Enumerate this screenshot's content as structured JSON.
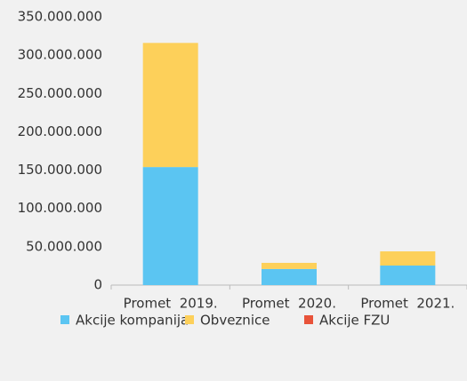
{
  "chart_data": {
    "type": "bar",
    "stacked": true,
    "categories": [
      "Promet  2019.",
      "Promet  2020.",
      "Promet  2021."
    ],
    "series": [
      {
        "name": "Akcije kompanija",
        "color": "#5bc5f2",
        "values": [
          154000000,
          21000000,
          25500000
        ]
      },
      {
        "name": "Obveznice",
        "color": "#fdd05a",
        "values": [
          162000000,
          8000000,
          18500000
        ]
      },
      {
        "name": "Akcije FZU",
        "color": "#e8533a",
        "values": [
          0,
          0,
          0
        ]
      }
    ],
    "ylim": [
      0,
      350000000
    ],
    "yticks": [
      0,
      {
        "value": 50000000,
        "label": "50.000.000"
      },
      {
        "value": 100000000,
        "label": "100.000.000"
      },
      {
        "value": 150000000,
        "label": "150.000.000"
      },
      {
        "value": 200000000,
        "label": "200.000.000"
      },
      {
        "value": 250000000,
        "label": "250.000.000"
      },
      {
        "value": 300000000,
        "label": "300.000.000"
      },
      {
        "value": 350000000,
        "label": "350.000.000"
      }
    ],
    "grid": false,
    "legend": "bottom"
  }
}
